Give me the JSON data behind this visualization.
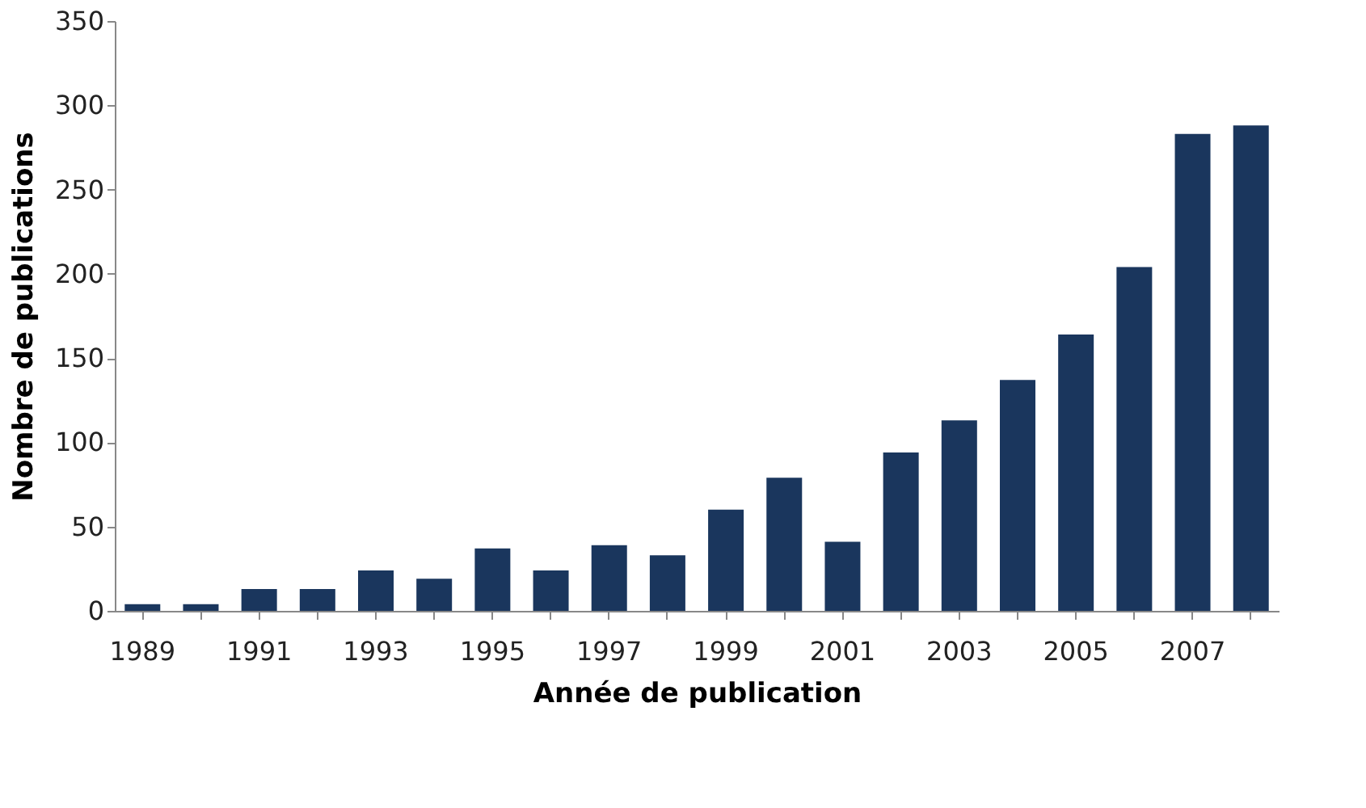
{
  "chart_data": {
    "type": "bar",
    "xlabel": "Année de publication",
    "ylabel": "Nombre de publications",
    "categories": [
      "1989",
      null,
      "1991",
      null,
      "1993",
      null,
      "1995",
      null,
      "1997",
      null,
      "1999",
      null,
      "2001",
      null,
      "2003",
      null,
      "2005",
      null,
      "2007",
      null
    ],
    "values": [
      4,
      4,
      13,
      13,
      24,
      19,
      37,
      24,
      39,
      33,
      60,
      79,
      41,
      94,
      113,
      137,
      164,
      204,
      283,
      288
    ],
    "color": "#1a365d",
    "ylim": [
      0,
      350
    ],
    "yticks": [
      0,
      50,
      100,
      150,
      200,
      250,
      300,
      350
    ],
    "grid": false
  }
}
